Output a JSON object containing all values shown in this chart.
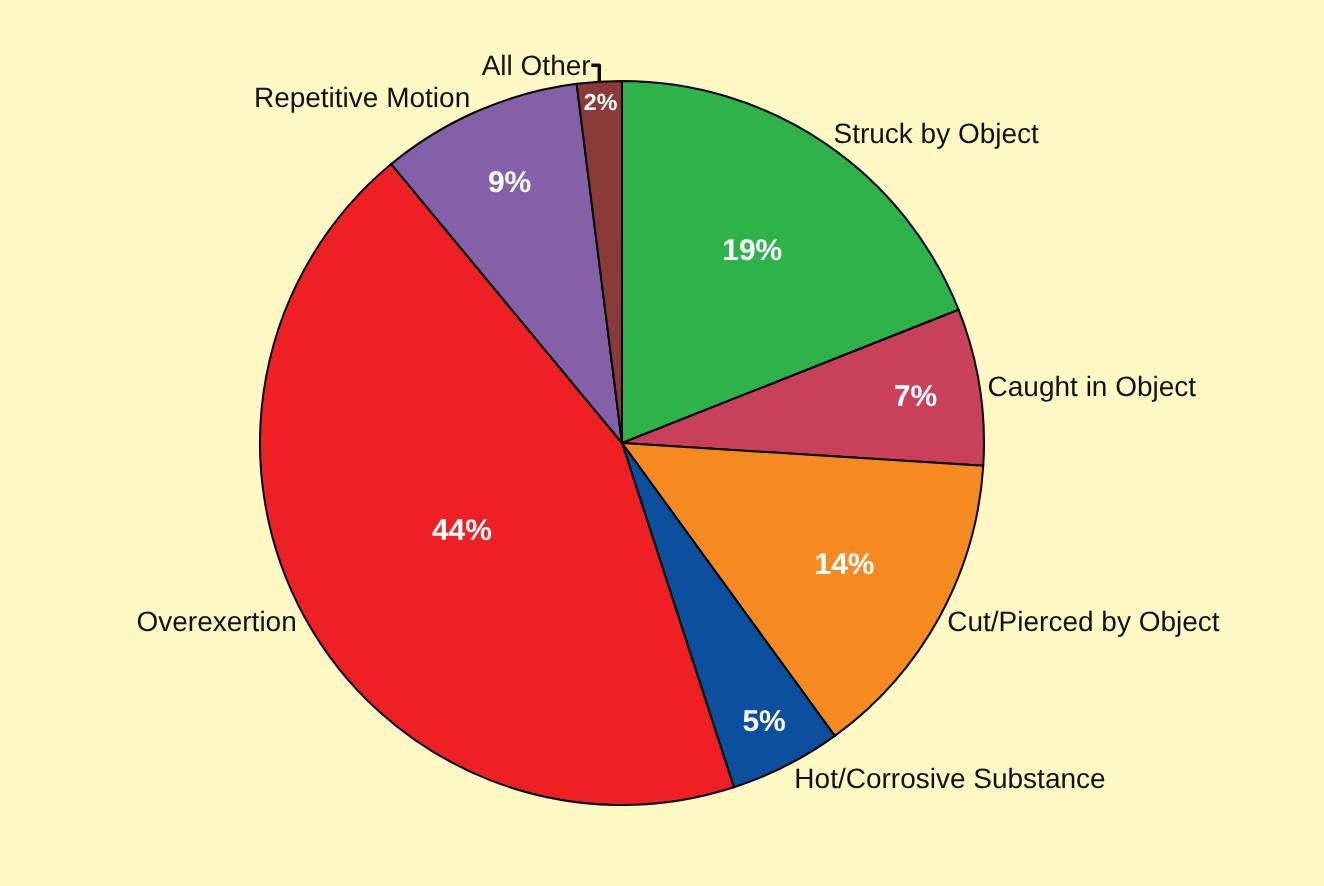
{
  "chart_data": {
    "type": "pie",
    "categories": [
      "Struck by Object",
      "Caught in Object",
      "Cut/Pierced by Object",
      "Hot/Corrosive Substance",
      "Overexertion",
      "Repetitive Motion",
      "All Other"
    ],
    "values": [
      19,
      7,
      14,
      5,
      44,
      9,
      2
    ],
    "value_labels": [
      "19%",
      "7%",
      "14%",
      "5%",
      "44%",
      "9%",
      "2%"
    ],
    "colors": [
      "#2db34a",
      "#c9405a",
      "#f58a20",
      "#0b4f9e",
      "#ee2024",
      "#8460a8",
      "#8b3a3a"
    ],
    "legend": false
  }
}
